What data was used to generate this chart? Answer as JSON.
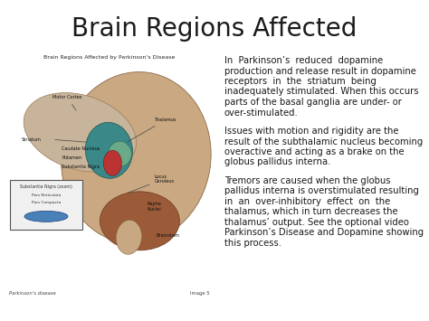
{
  "title": "Brain Regions Affected",
  "bg_color": "#ffffff",
  "text_color": "#1a1a1a",
  "title_fontsize": 20,
  "body_fontsize": 7.2,
  "paragraphs": [
    "In  Parkinson’s  reduced  dopamine\nproduction and release result in dopamine\nreceptors  in  the  striatum  being\ninadequately stimulated. When this occurs\nparts of the basal ganglia are under- or\nover-stimulated.",
    "Issues with motion and rigidity are the\nresult of the subthalamic nucleus becoming\noveractive and acting as a brake on the\nglobus pallidus interna.",
    "Tremors are caused when the globus\npallidus interna is overstimulated resulting\nin  an  over-inhibitory  effect  on  the\nthalamus, which in turn decreases the\nthalamus’ output. See the optional video\nParkinson’s Disease and Dopamine showing\nthis process."
  ],
  "brain_img_title": "Brain Regions Affected by Parkinson's Disease",
  "brain_img_caption_left": "Parkinson's disease",
  "brain_img_caption_right": "Image 5"
}
